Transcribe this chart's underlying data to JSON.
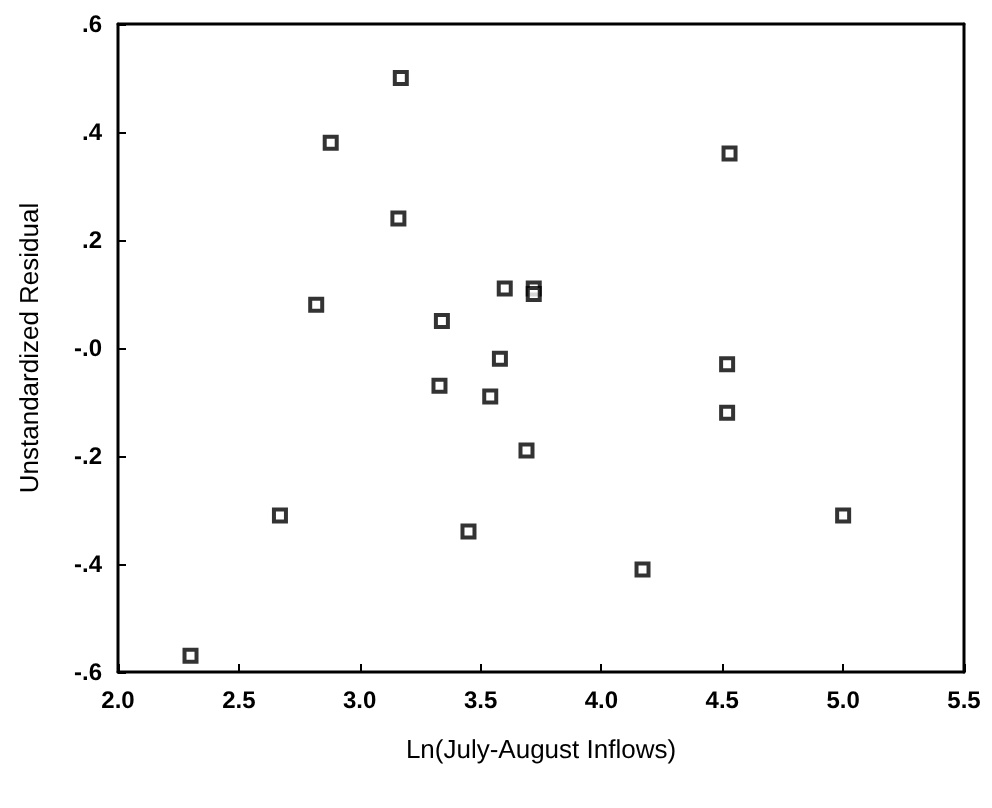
{
  "chart_data": {
    "type": "scatter",
    "xlabel": "Ln(July-August Inflows)",
    "ylabel": "Unstandardized Residual",
    "marker": "square",
    "grid": false,
    "x": [
      3.17,
      2.88,
      3.16,
      2.82,
      3.34,
      3.6,
      3.72,
      3.72,
      3.58,
      3.33,
      3.54,
      3.69,
      2.67,
      3.45,
      2.3,
      4.17,
      4.53,
      4.52,
      4.52,
      5.0
    ],
    "series": [
      {
        "color": "#000000",
        "values": [
          0.5,
          0.38,
          0.24,
          0.08,
          0.05,
          0.11,
          0.11,
          0.1,
          -0.02,
          -0.07,
          -0.09,
          -0.19,
          -0.31,
          -0.34,
          -0.57,
          -0.41,
          0.36,
          -0.03,
          -0.12,
          -0.31
        ]
      }
    ],
    "xlim": [
      2.0,
      5.5
    ],
    "xticks": [
      {
        "value": 2,
        "label": "2.0"
      },
      2.5,
      {
        "value": 3,
        "label": "3.0"
      },
      3.5,
      {
        "value": 4,
        "label": "4.0"
      },
      4.5,
      {
        "value": 5,
        "label": "5.0"
      },
      5.5
    ],
    "ylim": [
      -0.6,
      0.6
    ],
    "yticks": [
      {
        "value": -0.6,
        "label": "-.6"
      },
      {
        "value": -0.4,
        "label": "-.4"
      },
      {
        "value": -0.2,
        "label": "-.2"
      },
      {
        "value": 0,
        "label": "-.0"
      },
      {
        "value": 0.2,
        "label": ".2"
      },
      {
        "value": 0.4,
        "label": ".4"
      },
      {
        "value": 0.6,
        "label": ".6"
      }
    ]
  }
}
